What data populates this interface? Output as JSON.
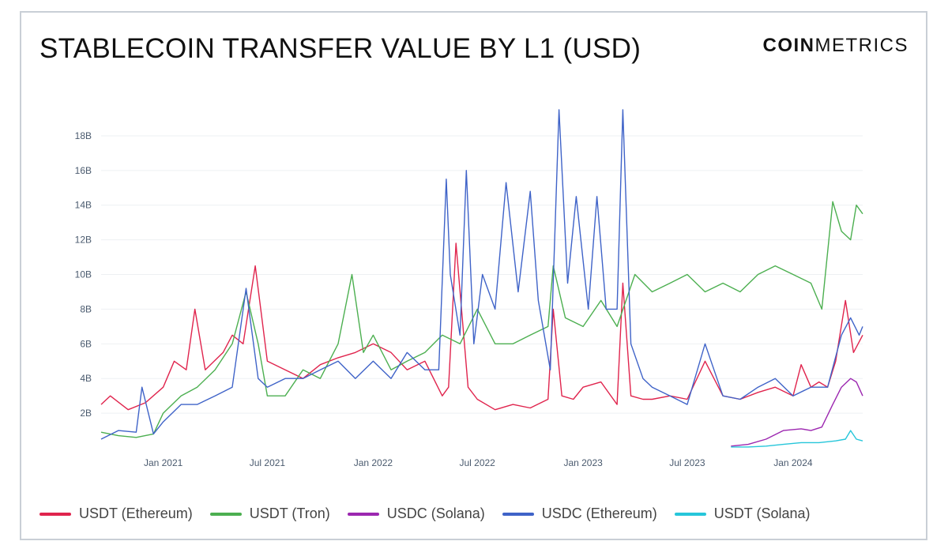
{
  "header": {
    "title": "STABLECOIN TRANSFER VALUE BY L1 (USD)",
    "logo_bold": "COIN",
    "logo_light": "METRICS"
  },
  "chart_data": {
    "type": "line",
    "title": "STABLECOIN TRANSFER VALUE BY L1 (USD)",
    "xlabel": "",
    "ylabel": "",
    "ylim": [
      0,
      19
    ],
    "y_ticks": [
      "2B",
      "4B",
      "6B",
      "8B",
      "10B",
      "12B",
      "14B",
      "16B",
      "18B"
    ],
    "x_ticks": [
      "Jan 2021",
      "Jul 2021",
      "Jan 2022",
      "Jul 2022",
      "Jan 2023",
      "Jul 2023",
      "Jan 2024"
    ],
    "x_tick_dates": [
      "2021-01-01",
      "2021-07-01",
      "2022-01-01",
      "2022-07-01",
      "2023-01-01",
      "2023-07-01",
      "2024-01-01"
    ],
    "xlim": [
      "2020-09-15",
      "2024-05-01"
    ],
    "grid": "horizontal",
    "legend": "bottom",
    "series": [
      {
        "name": "USDT (Ethereum)",
        "color": "#e0244d",
        "x": [
          "2020-09-15",
          "2020-10-01",
          "2020-11-01",
          "2020-12-01",
          "2021-01-01",
          "2021-01-20",
          "2021-02-10",
          "2021-02-25",
          "2021-03-15",
          "2021-04-15",
          "2021-05-01",
          "2021-05-20",
          "2021-06-10",
          "2021-07-01",
          "2021-08-01",
          "2021-09-01",
          "2021-10-01",
          "2021-11-01",
          "2021-12-01",
          "2022-01-01",
          "2022-02-01",
          "2022-03-01",
          "2022-04-01",
          "2022-05-01",
          "2022-05-12",
          "2022-05-25",
          "2022-06-15",
          "2022-07-01",
          "2022-08-01",
          "2022-09-01",
          "2022-10-01",
          "2022-11-01",
          "2022-11-10",
          "2022-11-25",
          "2022-12-15",
          "2023-01-01",
          "2023-02-01",
          "2023-03-01",
          "2023-03-11",
          "2023-03-25",
          "2023-04-15",
          "2023-05-01",
          "2023-06-01",
          "2023-07-01",
          "2023-08-01",
          "2023-09-01",
          "2023-10-01",
          "2023-11-01",
          "2023-12-01",
          "2024-01-01",
          "2024-01-15",
          "2024-02-01",
          "2024-02-15",
          "2024-03-01",
          "2024-03-15",
          "2024-04-01",
          "2024-04-15",
          "2024-05-01"
        ],
        "y": [
          2.5,
          3.0,
          2.2,
          2.6,
          3.5,
          5.0,
          4.5,
          8.0,
          4.5,
          5.5,
          6.5,
          6.0,
          10.5,
          5.0,
          4.5,
          4.0,
          4.8,
          5.2,
          5.5,
          6.0,
          5.5,
          4.5,
          5.0,
          3.0,
          3.5,
          11.8,
          3.5,
          2.8,
          2.2,
          2.5,
          2.3,
          2.8,
          8.0,
          3.0,
          2.8,
          3.5,
          3.8,
          2.5,
          9.5,
          3.0,
          2.8,
          2.8,
          3.0,
          2.8,
          5.0,
          3.0,
          2.8,
          3.2,
          3.5,
          3.0,
          4.8,
          3.5,
          3.8,
          3.5,
          5.0,
          8.5,
          5.5,
          6.5
        ]
      },
      {
        "name": "USDT (Tron)",
        "color": "#4caf50",
        "x": [
          "2020-09-15",
          "2020-10-15",
          "2020-11-15",
          "2020-12-15",
          "2021-01-01",
          "2021-02-01",
          "2021-03-01",
          "2021-04-01",
          "2021-05-01",
          "2021-05-25",
          "2021-06-15",
          "2021-07-01",
          "2021-08-01",
          "2021-09-01",
          "2021-10-01",
          "2021-11-01",
          "2021-11-25",
          "2021-12-15",
          "2022-01-01",
          "2022-02-01",
          "2022-03-01",
          "2022-04-01",
          "2022-05-01",
          "2022-06-01",
          "2022-07-01",
          "2022-08-01",
          "2022-09-01",
          "2022-10-01",
          "2022-11-01",
          "2022-11-10",
          "2022-12-01",
          "2023-01-01",
          "2023-02-01",
          "2023-03-01",
          "2023-04-01",
          "2023-05-01",
          "2023-06-01",
          "2023-07-01",
          "2023-08-01",
          "2023-09-01",
          "2023-10-01",
          "2023-11-01",
          "2023-12-01",
          "2024-01-01",
          "2024-02-01",
          "2024-02-20",
          "2024-03-10",
          "2024-03-25",
          "2024-04-10",
          "2024-04-20",
          "2024-05-01"
        ],
        "y": [
          0.9,
          0.7,
          0.6,
          0.8,
          2.0,
          3.0,
          3.5,
          4.5,
          6.0,
          9.0,
          6.0,
          3.0,
          3.0,
          4.5,
          4.0,
          6.0,
          10.0,
          5.5,
          6.5,
          4.5,
          5.0,
          5.5,
          6.5,
          6.0,
          8.0,
          6.0,
          6.0,
          6.5,
          7.0,
          10.5,
          7.5,
          7.0,
          8.5,
          7.0,
          10.0,
          9.0,
          9.5,
          10.0,
          9.0,
          9.5,
          9.0,
          10.0,
          10.5,
          10.0,
          9.5,
          8.0,
          14.2,
          12.5,
          12.0,
          14.0,
          13.5
        ]
      },
      {
        "name": "USDC (Solana)",
        "color": "#9c27b0",
        "x": [
          "2023-09-15",
          "2023-10-15",
          "2023-11-15",
          "2023-12-15",
          "2024-01-15",
          "2024-02-01",
          "2024-02-20",
          "2024-03-10",
          "2024-03-25",
          "2024-04-10",
          "2024-04-20",
          "2024-05-01"
        ],
        "y": [
          0.1,
          0.2,
          0.5,
          1.0,
          1.1,
          1.0,
          1.2,
          2.5,
          3.5,
          4.0,
          3.8,
          3.0
        ]
      },
      {
        "name": "USDC (Ethereum)",
        "color": "#3f63c8",
        "x": [
          "2020-09-15",
          "2020-10-15",
          "2020-11-15",
          "2020-11-25",
          "2020-12-15",
          "2021-01-01",
          "2021-02-01",
          "2021-03-01",
          "2021-04-01",
          "2021-05-01",
          "2021-05-25",
          "2021-06-15",
          "2021-07-01",
          "2021-08-01",
          "2021-09-01",
          "2021-10-01",
          "2021-11-01",
          "2021-12-01",
          "2022-01-01",
          "2022-02-01",
          "2022-03-01",
          "2022-04-01",
          "2022-04-25",
          "2022-05-08",
          "2022-05-15",
          "2022-06-01",
          "2022-06-12",
          "2022-06-25",
          "2022-07-10",
          "2022-08-01",
          "2022-08-20",
          "2022-09-10",
          "2022-10-01",
          "2022-10-15",
          "2022-11-05",
          "2022-11-20",
          "2022-12-05",
          "2022-12-20",
          "2023-01-10",
          "2023-01-25",
          "2023-02-10",
          "2023-03-01",
          "2023-03-11",
          "2023-03-25",
          "2023-04-15",
          "2023-05-01",
          "2023-06-01",
          "2023-07-01",
          "2023-08-01",
          "2023-09-01",
          "2023-10-01",
          "2023-11-01",
          "2023-12-01",
          "2024-01-01",
          "2024-02-01",
          "2024-03-01",
          "2024-03-25",
          "2024-04-10",
          "2024-04-25",
          "2024-05-01"
        ],
        "y": [
          0.5,
          1.0,
          0.9,
          3.5,
          0.8,
          1.5,
          2.5,
          2.5,
          3.0,
          3.5,
          9.2,
          4.0,
          3.5,
          4.0,
          4.0,
          4.5,
          5.0,
          4.0,
          5.0,
          4.0,
          5.5,
          4.5,
          4.5,
          15.5,
          10.0,
          6.5,
          16.0,
          6.0,
          10.0,
          8.0,
          15.3,
          9.0,
          14.8,
          8.5,
          4.5,
          19.5,
          9.5,
          14.5,
          8.0,
          14.5,
          8.0,
          8.0,
          19.5,
          6.0,
          4.0,
          3.5,
          3.0,
          2.5,
          6.0,
          3.0,
          2.8,
          3.5,
          4.0,
          3.0,
          3.5,
          3.5,
          6.5,
          7.5,
          6.5,
          7.0
        ]
      },
      {
        "name": "USDT (Solana)",
        "color": "#26c6da",
        "x": [
          "2023-09-15",
          "2023-10-15",
          "2023-11-15",
          "2023-12-15",
          "2024-01-15",
          "2024-02-15",
          "2024-03-15",
          "2024-04-01",
          "2024-04-10",
          "2024-04-20",
          "2024-05-01"
        ],
        "y": [
          0.05,
          0.05,
          0.1,
          0.2,
          0.3,
          0.3,
          0.4,
          0.5,
          1.0,
          0.5,
          0.4
        ]
      }
    ]
  }
}
